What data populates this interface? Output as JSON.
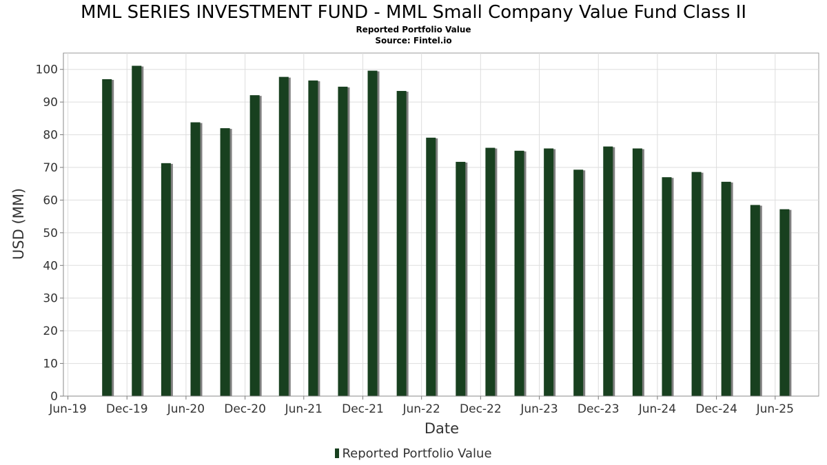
{
  "header": {
    "title": "MML SERIES INVESTMENT FUND - MML Small Company Value Fund Class II",
    "subtitle": "Reported Portfolio Value",
    "source": "Source: Fintel.io"
  },
  "legend": {
    "label": "Reported Portfolio Value"
  },
  "colors": {
    "bar": "#18401f",
    "shadow": "#808080",
    "grid": "#dddddd",
    "frame": "#999999"
  },
  "chart_data": {
    "type": "bar",
    "title": "MML SERIES INVESTMENT FUND - MML Small Company Value Fund Class II",
    "subtitle": "Reported Portfolio Value",
    "xlabel": "Date",
    "ylabel": "USD (MM)",
    "ylim": [
      0,
      105
    ],
    "yticks": [
      0,
      10,
      20,
      30,
      40,
      50,
      60,
      70,
      80,
      90,
      100
    ],
    "xlim": [
      "2019-05-18",
      "2025-10-14"
    ],
    "xticks": [
      {
        "label": "Jun-19",
        "date": "2019-06-01"
      },
      {
        "label": "Dec-19",
        "date": "2019-12-01"
      },
      {
        "label": "Jun-20",
        "date": "2020-06-01"
      },
      {
        "label": "Dec-20",
        "date": "2020-12-01"
      },
      {
        "label": "Jun-21",
        "date": "2021-06-01"
      },
      {
        "label": "Dec-21",
        "date": "2021-12-01"
      },
      {
        "label": "Jun-22",
        "date": "2022-06-01"
      },
      {
        "label": "Dec-22",
        "date": "2022-12-01"
      },
      {
        "label": "Jun-23",
        "date": "2023-06-01"
      },
      {
        "label": "Dec-23",
        "date": "2023-12-01"
      },
      {
        "label": "Jun-24",
        "date": "2024-06-01"
      },
      {
        "label": "Dec-24",
        "date": "2024-12-01"
      },
      {
        "label": "Jun-25",
        "date": "2025-06-01"
      }
    ],
    "grid": true,
    "legend_position": "bottom",
    "series": [
      {
        "name": "Reported Portfolio Value",
        "points": [
          {
            "date": "2019-09-30",
            "value": 97.0
          },
          {
            "date": "2019-12-31",
            "value": 101.1
          },
          {
            "date": "2020-03-31",
            "value": 71.3
          },
          {
            "date": "2020-06-30",
            "value": 83.8
          },
          {
            "date": "2020-09-30",
            "value": 82.0
          },
          {
            "date": "2020-12-31",
            "value": 92.1
          },
          {
            "date": "2021-03-31",
            "value": 97.7
          },
          {
            "date": "2021-06-30",
            "value": 96.6
          },
          {
            "date": "2021-09-30",
            "value": 94.7
          },
          {
            "date": "2021-12-31",
            "value": 99.6
          },
          {
            "date": "2022-03-31",
            "value": 93.4
          },
          {
            "date": "2022-06-30",
            "value": 79.1
          },
          {
            "date": "2022-09-30",
            "value": 71.7
          },
          {
            "date": "2022-12-31",
            "value": 76.0
          },
          {
            "date": "2023-03-31",
            "value": 75.1
          },
          {
            "date": "2023-06-30",
            "value": 75.8
          },
          {
            "date": "2023-09-30",
            "value": 69.3
          },
          {
            "date": "2023-12-31",
            "value": 76.4
          },
          {
            "date": "2024-03-31",
            "value": 75.8
          },
          {
            "date": "2024-06-30",
            "value": 67.0
          },
          {
            "date": "2024-09-30",
            "value": 68.6
          },
          {
            "date": "2024-12-31",
            "value": 65.6
          },
          {
            "date": "2025-03-31",
            "value": 58.5
          },
          {
            "date": "2025-06-30",
            "value": 57.2
          }
        ]
      }
    ]
  }
}
